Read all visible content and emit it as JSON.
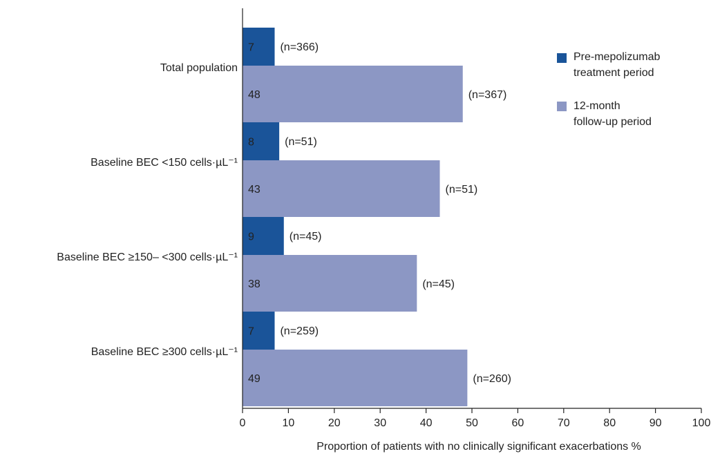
{
  "chart_data": {
    "type": "bar",
    "orientation": "horizontal",
    "title": "",
    "xlabel": "Proportion of patients with no clinically significant exacerbations %",
    "ylabel": "",
    "xlim": [
      0,
      100
    ],
    "xticks": [
      0,
      10,
      20,
      30,
      40,
      50,
      60,
      70,
      80,
      90,
      100
    ],
    "grid": false,
    "legend_position": "top-right",
    "categories": [
      "Total population",
      "Baseline BEC <150 cells·µL⁻¹",
      "Baseline BEC ≥150– <300 cells·µL⁻¹",
      "Baseline BEC ≥300 cells·µL⁻¹"
    ],
    "series": [
      {
        "name": "Pre-mepolizumab treatment period",
        "legend_lines": [
          "Pre-mepolizumab",
          "treatment period"
        ],
        "color": "#1a5499",
        "values": [
          7,
          8,
          9,
          7
        ],
        "n_labels": [
          "(n=366)",
          "(n=51)",
          "(n=45)",
          "(n=259)"
        ]
      },
      {
        "name": "12-month follow-up period",
        "legend_lines": [
          "12-month",
          "follow-up period"
        ],
        "color": "#8c97c4",
        "values": [
          48,
          43,
          38,
          49
        ],
        "n_labels": [
          "(n=367)",
          "(n=51)",
          "(n=45)",
          "(n=260)"
        ]
      }
    ]
  }
}
